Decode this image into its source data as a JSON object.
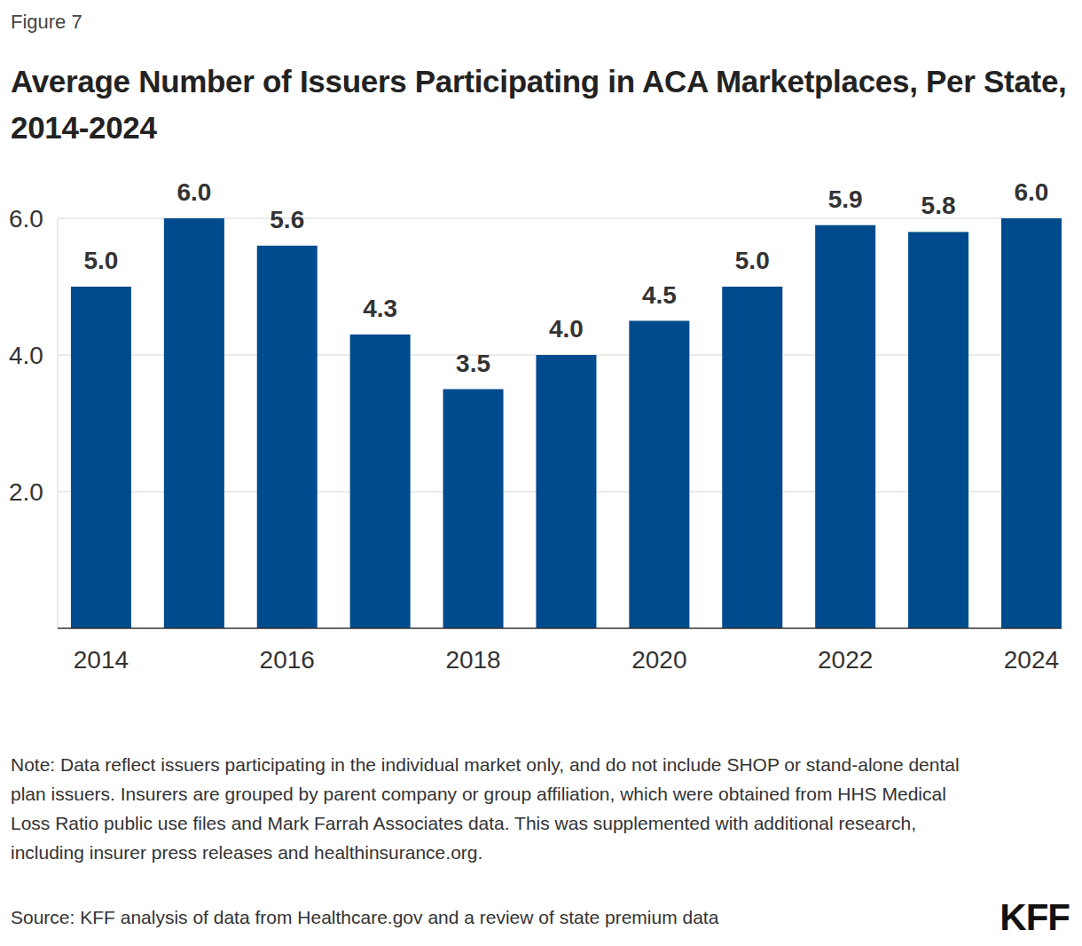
{
  "figure_label": "Figure 7",
  "chart_data": {
    "type": "bar",
    "title": "Average Number of Issuers Participating in ACA Marketplaces, Per State, 2014-2024",
    "categories": [
      "2014",
      null,
      "2016",
      null,
      "2018",
      null,
      "2020",
      null,
      "2022",
      null,
      "2024"
    ],
    "values": [
      5.0,
      6.0,
      5.6,
      4.3,
      3.5,
      4.0,
      4.5,
      5.0,
      5.9,
      5.8,
      6.0
    ],
    "value_labels": [
      "5.0",
      "6.0",
      "5.6",
      "4.3",
      "3.5",
      "4.0",
      "4.5",
      "5.0",
      "5.9",
      "5.8",
      "6.0"
    ],
    "color": "#004b8d",
    "ylim": [
      0,
      6
    ],
    "yticks": [
      {
        "value": 2,
        "label": "2.0"
      },
      {
        "value": 4,
        "label": "4.0"
      },
      {
        "value": 6,
        "label": "6.0"
      }
    ],
    "grid": true,
    "data_labels": true
  },
  "note": "Note: Data reflect issuers participating in the individual market only, and do not include SHOP or stand-alone dental plan issuers. Insurers are grouped by parent company or group affiliation, which were obtained from HHS Medical Loss Ratio public use files and Mark Farrah Associates data. This was supplemented with additional research, including insurer press releases and healthinsurance.org.",
  "source": "Source: KFF analysis of data from Healthcare.gov and a review of state premium data",
  "logo": "KFF"
}
